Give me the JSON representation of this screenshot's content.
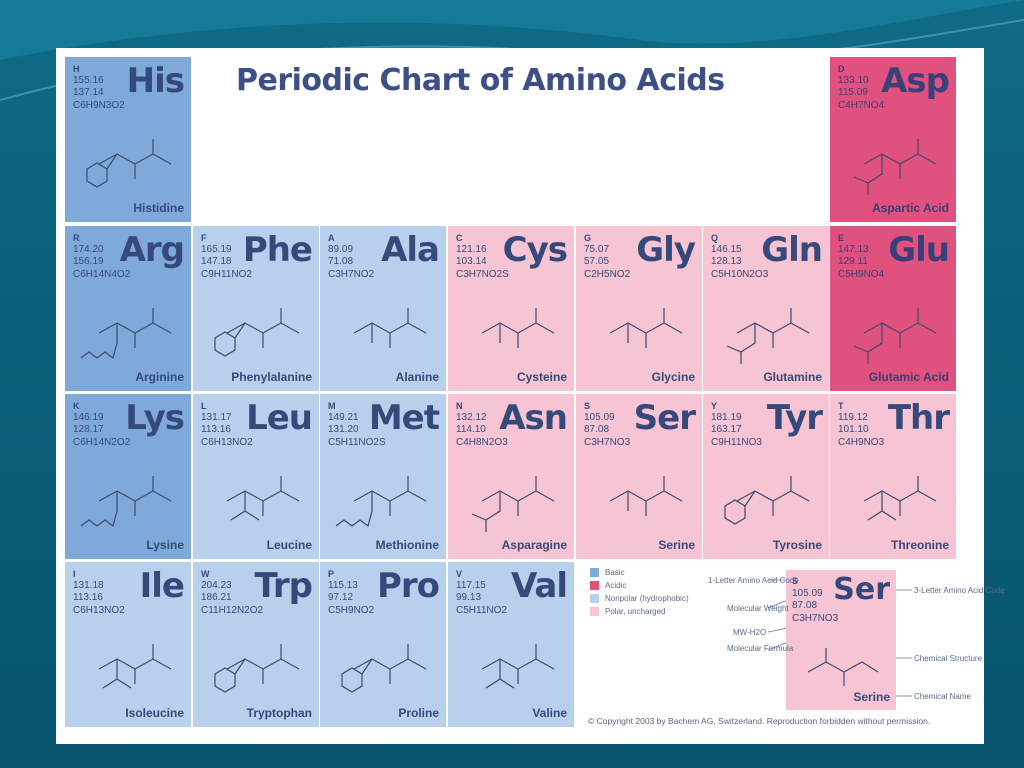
{
  "title": "Periodic Chart of Amino Acids",
  "colors": {
    "basic": "#7fa9d8",
    "acidic": "#e0527d",
    "nonpolar": "#b7d1ec",
    "polar": "#f6c4d2"
  },
  "amino_acids": [
    {
      "one": "H",
      "three": "His",
      "mw1": "155.16",
      "mw2": "137.14",
      "formula": "C6H9N3O2",
      "name": "Histidine",
      "class": "basic",
      "struct": "ring"
    },
    {
      "one": "D",
      "three": "Asp",
      "mw1": "133.10",
      "mw2": "115.09",
      "formula": "C4H7NO4",
      "name": "Aspartic Acid",
      "class": "acidic",
      "struct": "acid"
    },
    {
      "one": "R",
      "three": "Arg",
      "mw1": "174.20",
      "mw2": "156.19",
      "formula": "C6H14N4O2",
      "name": "Arginine",
      "class": "basic",
      "struct": "long"
    },
    {
      "one": "F",
      "three": "Phe",
      "mw1": "165.19",
      "mw2": "147.18",
      "formula": "C9H11NO2",
      "name": "Phenylalanine",
      "class": "nonpolar",
      "struct": "ring"
    },
    {
      "one": "A",
      "three": "Ala",
      "mw1": "89.09",
      "mw2": "71.08",
      "formula": "C3H7NO2",
      "name": "Alanine",
      "class": "nonpolar",
      "struct": "short"
    },
    {
      "one": "C",
      "three": "Cys",
      "mw1": "121.16",
      "mw2": "103.14",
      "formula": "C3H7NO2S",
      "name": "Cysteine",
      "class": "polar",
      "struct": "short"
    },
    {
      "one": "G",
      "three": "Gly",
      "mw1": "75.07",
      "mw2": "57.05",
      "formula": "C2H5NO2",
      "name": "Glycine",
      "class": "polar",
      "struct": "short"
    },
    {
      "one": "Q",
      "three": "Gln",
      "mw1": "146.15",
      "mw2": "128.13",
      "formula": "C5H10N2O3",
      "name": "Glutamine",
      "class": "polar",
      "struct": "acid"
    },
    {
      "one": "E",
      "three": "Glu",
      "mw1": "147.13",
      "mw2": "129.11",
      "formula": "C5H9NO4",
      "name": "Glutamic Acid",
      "class": "acidic",
      "struct": "acid"
    },
    {
      "one": "K",
      "three": "Lys",
      "mw1": "146.19",
      "mw2": "128.17",
      "formula": "C6H14N2O2",
      "name": "Lysine",
      "class": "basic",
      "struct": "long"
    },
    {
      "one": "L",
      "three": "Leu",
      "mw1": "131.17",
      "mw2": "113.16",
      "formula": "C6H13NO2",
      "name": "Leucine",
      "class": "nonpolar",
      "struct": "branch"
    },
    {
      "one": "M",
      "three": "Met",
      "mw1": "149.21",
      "mw2": "131.20",
      "formula": "C5H11NO2S",
      "name": "Methionine",
      "class": "nonpolar",
      "struct": "long"
    },
    {
      "one": "N",
      "three": "Asn",
      "mw1": "132.12",
      "mw2": "114.10",
      "formula": "C4H8N2O3",
      "name": "Asparagine",
      "class": "polar",
      "struct": "acid"
    },
    {
      "one": "S",
      "three": "Ser",
      "mw1": "105.09",
      "mw2": "87.08",
      "formula": "C3H7NO3",
      "name": "Serine",
      "class": "polar",
      "struct": "short"
    },
    {
      "one": "Y",
      "three": "Tyr",
      "mw1": "181.19",
      "mw2": "163.17",
      "formula": "C9H11NO3",
      "name": "Tyrosine",
      "class": "polar",
      "struct": "ring"
    },
    {
      "one": "T",
      "three": "Thr",
      "mw1": "119.12",
      "mw2": "101.10",
      "formula": "C4H9NO3",
      "name": "Threonine",
      "class": "polar",
      "struct": "branch"
    },
    {
      "one": "I",
      "three": "Ile",
      "mw1": "131.18",
      "mw2": "113.16",
      "formula": "C6H13NO2",
      "name": "Isoleucine",
      "class": "nonpolar",
      "struct": "branch"
    },
    {
      "one": "W",
      "three": "Trp",
      "mw1": "204.23",
      "mw2": "186.21",
      "formula": "C11H12N2O2",
      "name": "Tryptophan",
      "class": "nonpolar",
      "struct": "ring"
    },
    {
      "one": "P",
      "three": "Pro",
      "mw1": "115.13",
      "mw2": "97.12",
      "formula": "C5H9NO2",
      "name": "Proline",
      "class": "nonpolar",
      "struct": "ring"
    },
    {
      "one": "V",
      "three": "Val",
      "mw1": "117.15",
      "mw2": "99.13",
      "formula": "C5H11NO2",
      "name": "Valine",
      "class": "nonpolar",
      "struct": "branch"
    }
  ],
  "legend": [
    {
      "label": "Basic",
      "class": "basic"
    },
    {
      "label": "Acidic",
      "class": "acidic"
    },
    {
      "label": "Nonpolar (hydrophobic)",
      "class": "nonpolar"
    },
    {
      "label": "Polar, uncharged",
      "class": "polar"
    }
  ],
  "key": {
    "sample": {
      "one": "S",
      "three": "Ser",
      "mw1": "105.09",
      "mw2": "87.08",
      "formula": "C3H7NO3",
      "name": "Serine"
    },
    "one_letter_code": "1-Letter Amino Acid Code",
    "molecular_weight": "Molecular Weight",
    "mw_h2o": "MW-H2O",
    "molecular_formula": "Molecular Formula",
    "three_letter_code": "3-Letter Amino Acid Code",
    "chemical_structure": "Chemical Structure",
    "chemical_name": "Chemical Name"
  },
  "copyright": "© Copyright 2003 by Bachem AG, Switzerland. Reproduction forbidden without permission."
}
